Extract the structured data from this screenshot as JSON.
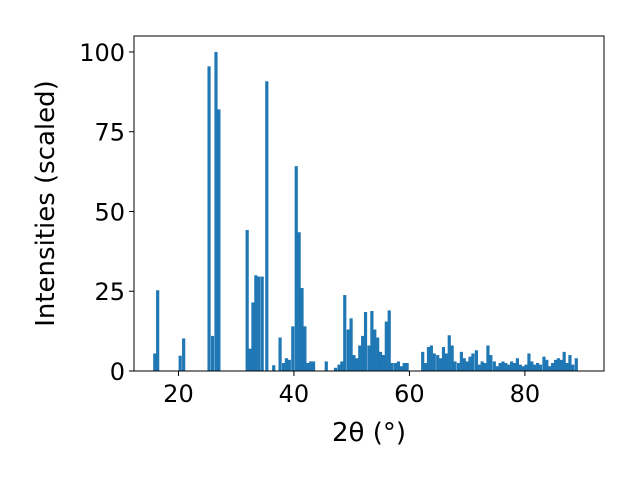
{
  "chart_data": {
    "type": "bar",
    "xlabel": "2θ (°)",
    "ylabel": "Intensities (scaled)",
    "xlim": [
      12.3,
      93.7
    ],
    "ylim": [
      0,
      105
    ],
    "x_ticks": [
      20,
      40,
      60,
      80
    ],
    "y_ticks": [
      0,
      25,
      50,
      75,
      100
    ],
    "grid": false,
    "bar_color": "#1f77b4",
    "bar_width": 0.55,
    "bars": [
      {
        "x": 15.9,
        "y": 5.5
      },
      {
        "x": 16.4,
        "y": 25.3
      },
      {
        "x": 20.3,
        "y": 4.8
      },
      {
        "x": 20.9,
        "y": 10.2
      },
      {
        "x": 25.3,
        "y": 95.5
      },
      {
        "x": 25.9,
        "y": 11.0
      },
      {
        "x": 26.5,
        "y": 100.0
      },
      {
        "x": 27.0,
        "y": 82.0
      },
      {
        "x": 31.9,
        "y": 44.2
      },
      {
        "x": 32.4,
        "y": 7.0
      },
      {
        "x": 32.9,
        "y": 21.5
      },
      {
        "x": 33.4,
        "y": 30.0
      },
      {
        "x": 33.9,
        "y": 29.6
      },
      {
        "x": 34.5,
        "y": 29.6
      },
      {
        "x": 35.3,
        "y": 90.8
      },
      {
        "x": 36.5,
        "y": 1.8
      },
      {
        "x": 37.6,
        "y": 10.5
      },
      {
        "x": 38.2,
        "y": 2.5
      },
      {
        "x": 38.7,
        "y": 4.0
      },
      {
        "x": 39.2,
        "y": 3.5
      },
      {
        "x": 39.8,
        "y": 14.0
      },
      {
        "x": 40.4,
        "y": 64.2
      },
      {
        "x": 40.9,
        "y": 43.5
      },
      {
        "x": 41.4,
        "y": 26.0
      },
      {
        "x": 41.9,
        "y": 14.0
      },
      {
        "x": 42.4,
        "y": 2.5
      },
      {
        "x": 42.9,
        "y": 3.0
      },
      {
        "x": 43.4,
        "y": 3.0
      },
      {
        "x": 45.6,
        "y": 3.0
      },
      {
        "x": 47.2,
        "y": 1.0
      },
      {
        "x": 47.8,
        "y": 2.0
      },
      {
        "x": 48.3,
        "y": 3.0
      },
      {
        "x": 48.8,
        "y": 23.8
      },
      {
        "x": 49.4,
        "y": 13.0
      },
      {
        "x": 49.9,
        "y": 16.5
      },
      {
        "x": 50.4,
        "y": 5.0
      },
      {
        "x": 50.9,
        "y": 4.0
      },
      {
        "x": 51.4,
        "y": 8.0
      },
      {
        "x": 51.9,
        "y": 11.0
      },
      {
        "x": 52.4,
        "y": 18.5
      },
      {
        "x": 53.0,
        "y": 8.0
      },
      {
        "x": 53.5,
        "y": 18.8
      },
      {
        "x": 54.0,
        "y": 13.0
      },
      {
        "x": 54.5,
        "y": 10.5
      },
      {
        "x": 55.0,
        "y": 6.0
      },
      {
        "x": 55.5,
        "y": 5.0
      },
      {
        "x": 56.0,
        "y": 15.5
      },
      {
        "x": 56.5,
        "y": 19.0
      },
      {
        "x": 57.0,
        "y": 2.5
      },
      {
        "x": 57.6,
        "y": 2.5
      },
      {
        "x": 58.1,
        "y": 3.0
      },
      {
        "x": 58.6,
        "y": 1.5
      },
      {
        "x": 59.1,
        "y": 2.5
      },
      {
        "x": 59.6,
        "y": 2.5
      },
      {
        "x": 62.3,
        "y": 6.0
      },
      {
        "x": 62.8,
        "y": 2.5
      },
      {
        "x": 63.3,
        "y": 7.5
      },
      {
        "x": 63.8,
        "y": 8.0
      },
      {
        "x": 64.3,
        "y": 5.5
      },
      {
        "x": 64.9,
        "y": 5.0
      },
      {
        "x": 65.4,
        "y": 4.0
      },
      {
        "x": 65.9,
        "y": 7.5
      },
      {
        "x": 66.4,
        "y": 5.5
      },
      {
        "x": 66.9,
        "y": 11.2
      },
      {
        "x": 67.4,
        "y": 8.0
      },
      {
        "x": 67.9,
        "y": 3.0
      },
      {
        "x": 68.5,
        "y": 2.5
      },
      {
        "x": 69.0,
        "y": 6.0
      },
      {
        "x": 69.5,
        "y": 4.0
      },
      {
        "x": 70.0,
        "y": 3.0
      },
      {
        "x": 70.5,
        "y": 4.5
      },
      {
        "x": 71.0,
        "y": 5.5
      },
      {
        "x": 71.6,
        "y": 6.5
      },
      {
        "x": 72.1,
        "y": 2.0
      },
      {
        "x": 72.6,
        "y": 3.0
      },
      {
        "x": 73.1,
        "y": 2.5
      },
      {
        "x": 73.6,
        "y": 8.0
      },
      {
        "x": 74.1,
        "y": 5.0
      },
      {
        "x": 74.7,
        "y": 3.0
      },
      {
        "x": 75.2,
        "y": 1.5
      },
      {
        "x": 75.7,
        "y": 2.5
      },
      {
        "x": 76.2,
        "y": 3.0
      },
      {
        "x": 76.7,
        "y": 2.5
      },
      {
        "x": 77.2,
        "y": 2.0
      },
      {
        "x": 77.7,
        "y": 3.0
      },
      {
        "x": 78.2,
        "y": 2.5
      },
      {
        "x": 78.7,
        "y": 4.0
      },
      {
        "x": 79.2,
        "y": 2.0
      },
      {
        "x": 79.7,
        "y": 1.5
      },
      {
        "x": 80.2,
        "y": 2.0
      },
      {
        "x": 80.7,
        "y": 5.5
      },
      {
        "x": 81.2,
        "y": 3.0
      },
      {
        "x": 81.7,
        "y": 2.0
      },
      {
        "x": 82.2,
        "y": 2.5
      },
      {
        "x": 82.7,
        "y": 2.0
      },
      {
        "x": 83.3,
        "y": 4.5
      },
      {
        "x": 83.8,
        "y": 3.5
      },
      {
        "x": 84.3,
        "y": 1.5
      },
      {
        "x": 84.8,
        "y": 2.5
      },
      {
        "x": 85.3,
        "y": 3.5
      },
      {
        "x": 85.8,
        "y": 4.0
      },
      {
        "x": 86.3,
        "y": 3.5
      },
      {
        "x": 86.8,
        "y": 6.0
      },
      {
        "x": 87.3,
        "y": 2.5
      },
      {
        "x": 87.8,
        "y": 5.0
      },
      {
        "x": 88.3,
        "y": 2.0
      },
      {
        "x": 88.9,
        "y": 4.0
      }
    ]
  }
}
